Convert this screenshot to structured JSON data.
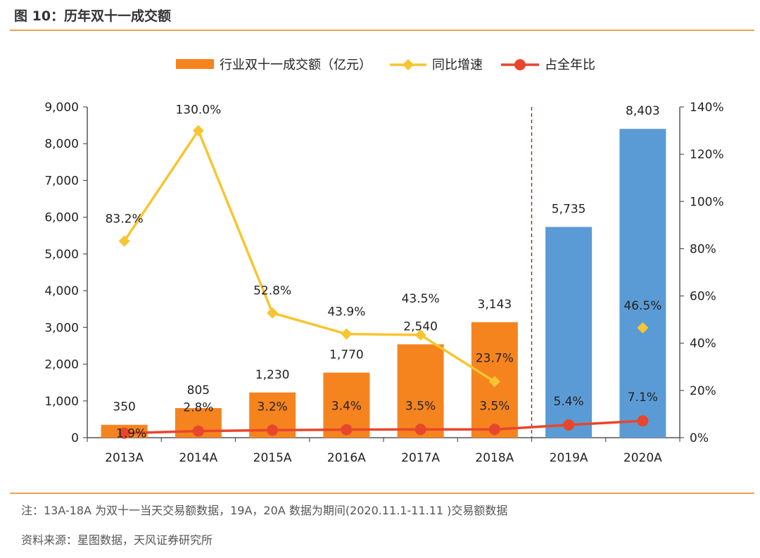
{
  "figure_title": "图 10：历年双十一成交额",
  "notes": {
    "note": "注：13A-18A 为双十一当天交易额数据，19A，20A 数据为期间(2020.11.1-11.11 )交易额数据",
    "source": "资料来源：星图数据，天风证券研究所"
  },
  "chart_data": {
    "type": "bar+line",
    "categories": [
      "2013A",
      "2014A",
      "2015A",
      "2016A",
      "2017A",
      "2018A",
      "2019A",
      "2020A"
    ],
    "series": [
      {
        "name": "行业双十一成交额（亿元）",
        "kind": "bar",
        "axis": "left",
        "values": [
          350,
          805,
          1230,
          1770,
          2540,
          3143,
          5735,
          8403
        ],
        "labels": [
          "350",
          "805",
          "1,230",
          "1,770",
          "2,540",
          "3,143",
          "5,735",
          "8,403"
        ],
        "colors": [
          "#f5841f",
          "#f5841f",
          "#f5841f",
          "#f5841f",
          "#f5841f",
          "#f5841f",
          "#5b9bd5",
          "#5b9bd5"
        ]
      },
      {
        "name": "同比增速",
        "kind": "line",
        "axis": "right",
        "color": "#f7c531",
        "marker": "diamond",
        "values": [
          83.2,
          130.0,
          52.8,
          43.9,
          43.5,
          23.7,
          null,
          46.5
        ],
        "labels": [
          "83.2%",
          "130.0%",
          "52.8%",
          "43.9%",
          "43.5%",
          "23.7%",
          null,
          "46.5%"
        ]
      },
      {
        "name": "占全年比",
        "kind": "line",
        "axis": "right",
        "color": "#e8462c",
        "marker": "circle",
        "values": [
          1.9,
          2.8,
          3.2,
          3.4,
          3.5,
          3.5,
          5.4,
          7.1
        ],
        "labels": [
          "1.9%",
          "2.8%",
          "3.2%",
          "3.4%",
          "3.5%",
          "3.5%",
          "5.4%",
          "7.1%"
        ]
      }
    ],
    "y_left": {
      "min": 0,
      "max": 9000,
      "ticks": [
        "0",
        "1,000",
        "2,000",
        "3,000",
        "4,000",
        "5,000",
        "6,000",
        "7,000",
        "8,000",
        "9,000"
      ]
    },
    "y_right": {
      "min": 0,
      "max": 140,
      "ticks": [
        "0%",
        "20%",
        "40%",
        "60%",
        "80%",
        "100%",
        "120%",
        "140%"
      ]
    },
    "divider_between": [
      "2018A",
      "2019A"
    ],
    "divider_color": "#c00000",
    "legend_position": "top"
  }
}
